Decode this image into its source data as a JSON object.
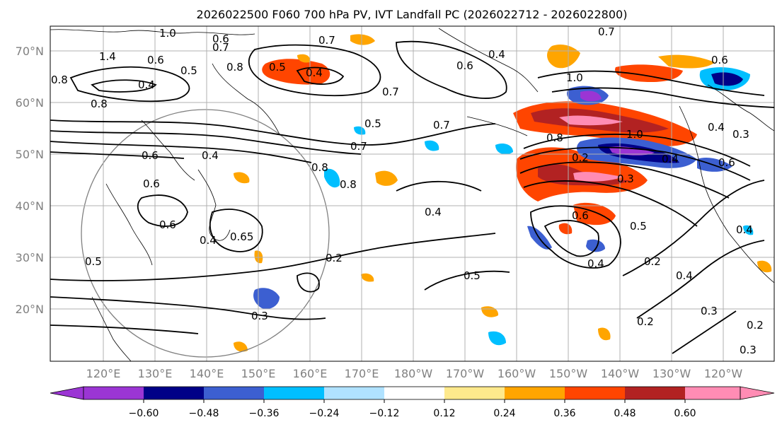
{
  "title": "2026022500 F060 700 hPa PV, IVT Landfall PC (2026022712 - 2026022800)",
  "map": {
    "lat_labels": [
      "70°N",
      "60°N",
      "50°N",
      "40°N",
      "30°N",
      "20°N"
    ],
    "lon_labels": [
      "120°E",
      "130°E",
      "140°E",
      "150°E",
      "160°E",
      "170°E",
      "180°W",
      "170°W",
      "160°W",
      "150°W",
      "140°W",
      "130°W",
      "120°W"
    ],
    "contour_labels": [
      "0.8",
      "1.4",
      "0.6",
      "0.4",
      "0.5",
      "0.7",
      "0.8",
      "0.7",
      "0.5",
      "0.4",
      "0.7",
      "0.6",
      "0.4",
      "0.7",
      "1.0",
      "0.8",
      "0.6",
      "0.6",
      "0.4",
      "0.5",
      "0.8",
      "0.7",
      "0.8",
      "0.7",
      "0.4",
      "0.6",
      "0.2",
      "0.3",
      "0.5",
      "0.5",
      "0.4",
      "0.6",
      "0.65",
      "0.2",
      "0.3",
      "0.4",
      "0.5",
      "0.2",
      "0.6",
      "1.0",
      "0.8",
      "0.3",
      "0.4",
      "0.6",
      "0.2",
      "0.3",
      "0.2",
      "0.4",
      "0.3",
      "0.4",
      "0.4",
      "1.0",
      "0.6"
    ],
    "shading_palette": [
      "#9b35d4",
      "#000087",
      "#3c5fd1",
      "#00bfff",
      "#b0e2ff",
      "#ffffff",
      "#fee98c",
      "#ffa500",
      "#ff4500",
      "#b22222",
      "#ff8cb4"
    ]
  },
  "colorbar": {
    "ticks": [
      "−0.60",
      "−0.48",
      "−0.36",
      "−0.24",
      "−0.12",
      "0.12",
      "0.24",
      "0.36",
      "0.48",
      "0.60"
    ],
    "colors": [
      "#9b35d4",
      "#000087",
      "#3c5fd1",
      "#00bfff",
      "#b0e2ff",
      "#ffffff",
      "#fee98c",
      "#ffa500",
      "#ff4500",
      "#b22222",
      "#ff8cb4"
    ]
  }
}
